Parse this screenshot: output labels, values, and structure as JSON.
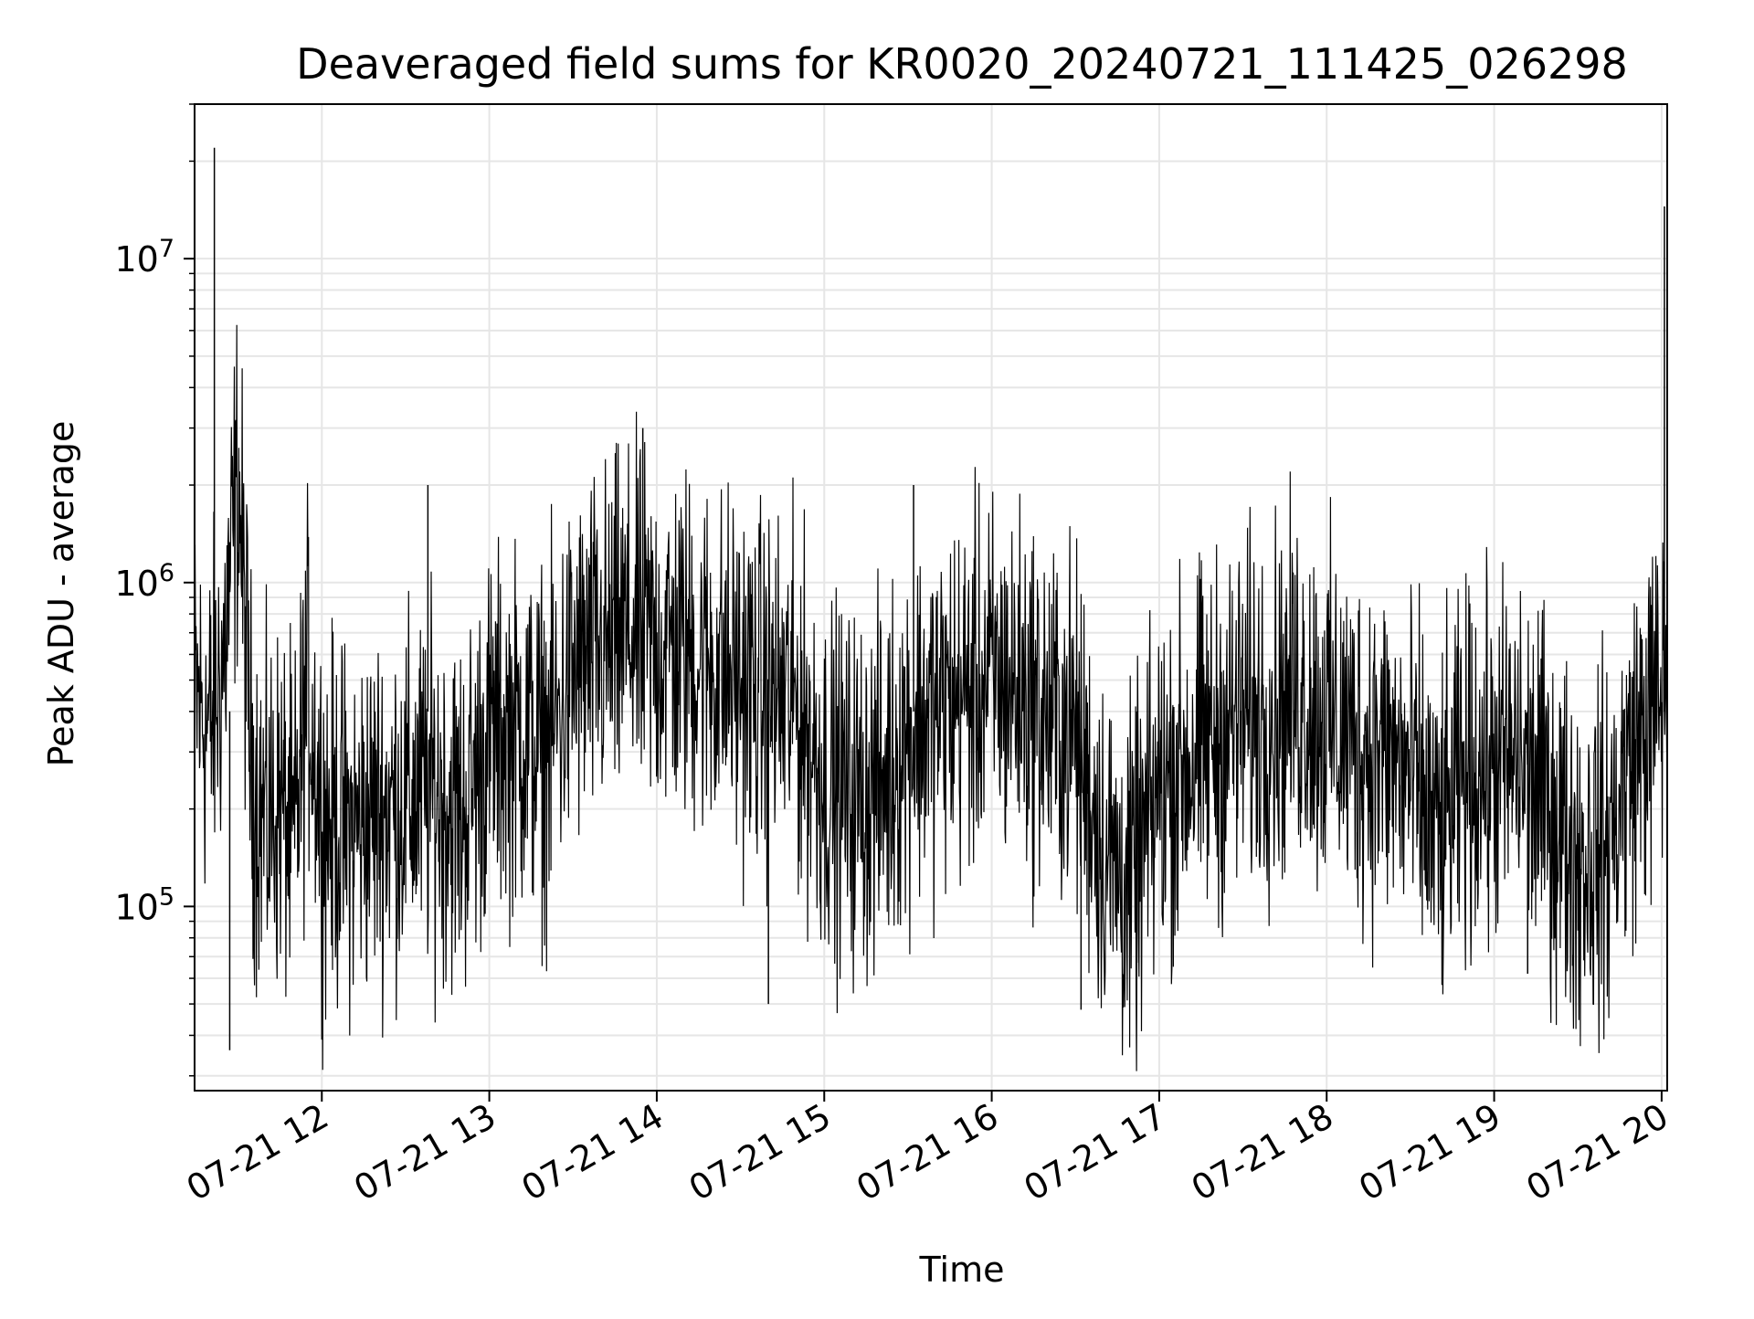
{
  "chart_data": {
    "type": "line",
    "title": "Deaveraged field sums for KR0020_20240721_111425_026298",
    "xlabel": "Time",
    "ylabel": "Peak ADU - average",
    "x_range": [
      "2024-07-21T11:14:25",
      "2024-07-21T20:02:00"
    ],
    "y_scale": "log",
    "ylim": [
      27000,
      30000000
    ],
    "grid": true,
    "line_color": "#000000",
    "grid_color": "#e6e6e6",
    "x_ticks": [
      {
        "value": "2024-07-21T12:00:00",
        "label": "07-21 12"
      },
      {
        "value": "2024-07-21T13:00:00",
        "label": "07-21 13"
      },
      {
        "value": "2024-07-21T14:00:00",
        "label": "07-21 14"
      },
      {
        "value": "2024-07-21T15:00:00",
        "label": "07-21 15"
      },
      {
        "value": "2024-07-21T16:00:00",
        "label": "07-21 16"
      },
      {
        "value": "2024-07-21T17:00:00",
        "label": "07-21 17"
      },
      {
        "value": "2024-07-21T18:00:00",
        "label": "07-21 18"
      },
      {
        "value": "2024-07-21T19:00:00",
        "label": "07-21 19"
      },
      {
        "value": "2024-07-21T20:00:00",
        "label": "07-21 20"
      }
    ],
    "y_ticks": [
      {
        "value": 100000,
        "base": "10",
        "exp": "5"
      },
      {
        "value": 1000000,
        "base": "10",
        "exp": "6"
      },
      {
        "value": 10000000,
        "base": "10",
        "exp": "7"
      }
    ],
    "series": [
      {
        "x": [
          "2024-07-21T11:14:25",
          "2024-07-21T11:20:00",
          "2024-07-21T11:25:00",
          "2024-07-21T11:30:00",
          "2024-07-21T11:35:00",
          "2024-07-21T11:40:00",
          "2024-07-21T11:45:00",
          "2024-07-21T11:50:00",
          "2024-07-21T11:55:00",
          "2024-07-21T12:00:00",
          "2024-07-21T12:10:00",
          "2024-07-21T12:20:00",
          "2024-07-21T12:30:00",
          "2024-07-21T12:40:00",
          "2024-07-21T12:50:00",
          "2024-07-21T13:00:00",
          "2024-07-21T13:10:00",
          "2024-07-21T13:20:00",
          "2024-07-21T13:30:00",
          "2024-07-21T13:40:00",
          "2024-07-21T13:50:00",
          "2024-07-21T14:00:00",
          "2024-07-21T14:10:00",
          "2024-07-21T14:20:00",
          "2024-07-21T14:30:00",
          "2024-07-21T14:40:00",
          "2024-07-21T14:50:00",
          "2024-07-21T15:00:00",
          "2024-07-21T15:10:00",
          "2024-07-21T15:20:00",
          "2024-07-21T15:30:00",
          "2024-07-21T15:40:00",
          "2024-07-21T15:50:00",
          "2024-07-21T16:00:00",
          "2024-07-21T16:10:00",
          "2024-07-21T16:20:00",
          "2024-07-21T16:30:00",
          "2024-07-21T16:40:00",
          "2024-07-21T16:50:00",
          "2024-07-21T17:00:00",
          "2024-07-21T17:10:00",
          "2024-07-21T17:20:00",
          "2024-07-21T17:30:00",
          "2024-07-21T17:40:00",
          "2024-07-21T17:50:00",
          "2024-07-21T18:00:00",
          "2024-07-21T18:10:00",
          "2024-07-21T18:20:00",
          "2024-07-21T18:30:00",
          "2024-07-21T18:40:00",
          "2024-07-21T18:50:00",
          "2024-07-21T19:00:00",
          "2024-07-21T19:10:00",
          "2024-07-21T19:20:00",
          "2024-07-21T19:30:00",
          "2024-07-21T19:40:00",
          "2024-07-21T19:50:00",
          "2024-07-21T20:00:00",
          "2024-07-21T20:02:00"
        ],
        "y": [
          450000,
          350000,
          600000,
          2200000,
          250000,
          180000,
          210000,
          150000,
          500000,
          190000,
          170000,
          200000,
          210000,
          230000,
          190000,
          330000,
          350000,
          300000,
          520000,
          600000,
          700000,
          650000,
          620000,
          560000,
          500000,
          450000,
          420000,
          250000,
          220000,
          230000,
          350000,
          400000,
          450000,
          500000,
          470000,
          380000,
          350000,
          150000,
          110000,
          230000,
          280000,
          330000,
          380000,
          400000,
          460000,
          380000,
          320000,
          300000,
          250000,
          160000,
          260000,
          270000,
          280000,
          200000,
          140000,
          150000,
          300000,
          450000,
          600000
        ]
      }
    ],
    "spikes": [
      {
        "x": "2024-07-21T11:21:30",
        "y": 22000000
      },
      {
        "x": "2024-07-21T11:27:00",
        "y": 36000
      },
      {
        "x": "2024-07-21T12:38:00",
        "y": 2000000
      },
      {
        "x": "2024-07-21T13:55:00",
        "y": 3000000
      },
      {
        "x": "2024-07-21T14:40:00",
        "y": 50000
      },
      {
        "x": "2024-07-21T15:32:00",
        "y": 2000000
      },
      {
        "x": "2024-07-21T16:32:00",
        "y": 48000
      },
      {
        "x": "2024-07-21T16:52:00",
        "y": 67000
      },
      {
        "x": "2024-07-21T19:12:00",
        "y": 62000
      },
      {
        "x": "2024-07-21T20:01:00",
        "y": 14500000
      }
    ]
  }
}
